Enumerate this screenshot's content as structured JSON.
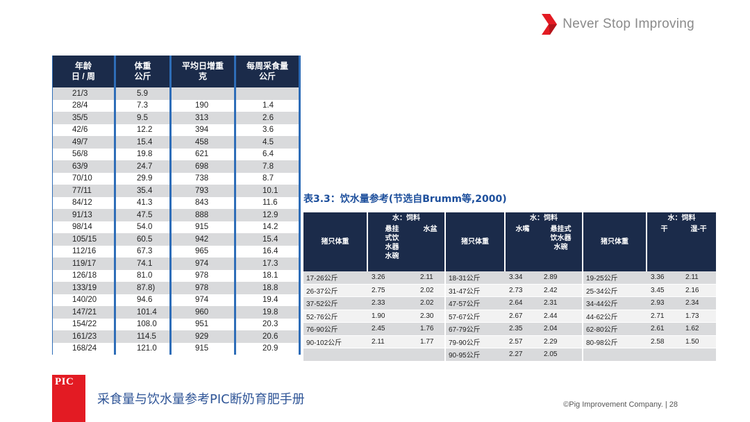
{
  "header": {
    "tagline": "Never Stop Improving",
    "accent": "#e31b23"
  },
  "table1": {
    "headers": [
      {
        "l1": "年龄",
        "l2": "日 / 周"
      },
      {
        "l1": "体重",
        "l2": "公斤"
      },
      {
        "l1": "平均日增重",
        "l2": "克"
      },
      {
        "l1": "每周采食量",
        "l2": "公斤"
      }
    ],
    "rows": [
      [
        "21/3",
        "5.9",
        "",
        ""
      ],
      [
        "28/4",
        "7.3",
        "190",
        "1.4"
      ],
      [
        "35/5",
        "9.5",
        "313",
        "2.6"
      ],
      [
        "42/6",
        "12.2",
        "394",
        "3.6"
      ],
      [
        "49/7",
        "15.4",
        "458",
        "4.5"
      ],
      [
        "56/8",
        "19.8",
        "621",
        "6.4"
      ],
      [
        "63/9",
        "24.7",
        "698",
        "7.8"
      ],
      [
        "70/10",
        "29.9",
        "738",
        "8.7"
      ],
      [
        "77/11",
        "35.4",
        "793",
        "10.1"
      ],
      [
        "84/12",
        "41.3",
        "843",
        "11.6"
      ],
      [
        "91/13",
        "47.5",
        "888",
        "12.9"
      ],
      [
        "98/14",
        "54.0",
        "915",
        "14.2"
      ],
      [
        "105/15",
        "60.5",
        "942",
        "15.4"
      ],
      [
        "112/16",
        "67.3",
        "965",
        "16.4"
      ],
      [
        "119/17",
        "74.1",
        "974",
        "17.3"
      ],
      [
        "126/18",
        "81.0",
        "978",
        "18.1"
      ],
      [
        "133/19",
        "87.8)",
        "978",
        "18.8"
      ],
      [
        "140/20",
        "94.6",
        "974",
        "19.4"
      ],
      [
        "147/21",
        "101.4",
        "960",
        "19.8"
      ],
      [
        "154/22",
        "108.0",
        "951",
        "20.3"
      ],
      [
        "161/23",
        "114.5",
        "929",
        "20.6"
      ],
      [
        "168/24",
        "121.0",
        "915",
        "20.9"
      ]
    ]
  },
  "table2": {
    "caption": "表3.3：饮水量参考(节选自Brumm等,2000)",
    "group_weight_label": "猪只体重",
    "ratio_label": "水：饲料",
    "sub_a": [
      "悬挂",
      "式饮",
      "水器",
      "水碗"
    ],
    "sub_b": "水盆",
    "sub_c": "水嘴",
    "sub_d": [
      "悬挂式",
      "饮水器",
      "水碗"
    ],
    "sub_e": "干",
    "sub_f": "湿-干",
    "rows": [
      [
        "17-26公斤",
        "3.26",
        "2.11",
        "18-31公斤",
        "3.34",
        "2.89",
        "19-25公斤",
        "3.36",
        "2.11"
      ],
      [
        "26-37公斤",
        "2.75",
        "2.02",
        "31-47公斤",
        "2.73",
        "2.42",
        "25-34公斤",
        "3.45",
        "2.16"
      ],
      [
        "37-52公斤",
        "2.33",
        "2.02",
        "47-57公斤",
        "2.64",
        "2.31",
        "34-44公斤",
        "2.93",
        "2.34"
      ],
      [
        "52-76公斤",
        "1.90",
        "2.30",
        "57-67公斤",
        "2.67",
        "2.44",
        "44-62公斤",
        "2.71",
        "1.73"
      ],
      [
        "76-90公斤",
        "2.45",
        "1.76",
        "67-79公斤",
        "2.35",
        "2.04",
        "62-80公斤",
        "2.61",
        "1.62"
      ],
      [
        "90-102公斤",
        "2.11",
        "1.77",
        "79-90公斤",
        "2.57",
        "2.29",
        "80-98公斤",
        "2.58",
        "1.50"
      ],
      [
        "",
        "",
        "",
        "90-95公斤",
        "2.27",
        "2.05",
        "",
        "",
        ""
      ]
    ]
  },
  "footer": {
    "logo_text": "PIC",
    "title": "采食量与饮水量参考PIC断奶育肥手册",
    "copyright": "©Pig Improvement Company. |  28"
  }
}
